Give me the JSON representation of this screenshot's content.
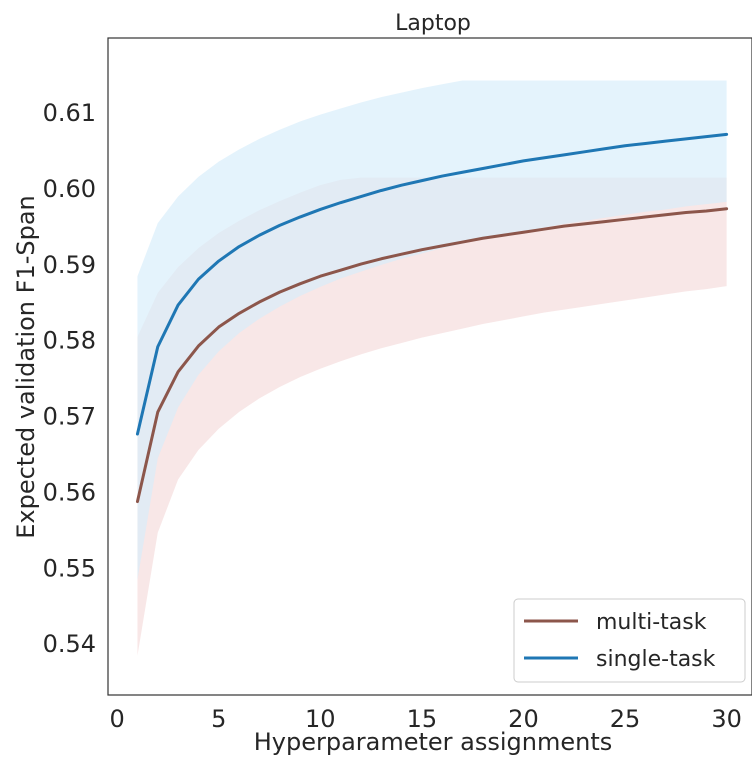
{
  "chart_data": {
    "type": "line",
    "title": "Laptop",
    "xlabel": "Hyperparameter assignments",
    "ylabel": "Expected validation F1-Span",
    "xlim": [
      -0.45,
      31.25
    ],
    "ylim": [
      0.5333,
      0.6199
    ],
    "xticks": [
      0,
      5,
      10,
      15,
      20,
      25,
      30
    ],
    "yticks": [
      0.54,
      0.55,
      0.56,
      0.57,
      0.58,
      0.59,
      0.6,
      0.61
    ],
    "grid": false,
    "legend_position": "lower-right",
    "x": [
      1,
      2,
      3,
      4,
      5,
      6,
      7,
      8,
      9,
      10,
      11,
      12,
      13,
      14,
      15,
      16,
      17,
      18,
      19,
      20,
      21,
      22,
      23,
      24,
      25,
      26,
      27,
      28,
      29,
      30
    ],
    "series": [
      {
        "name": "multi-task",
        "color": "#8c564b",
        "band_color": "#f5dada",
        "values": [
          0.5588,
          0.5706,
          0.5759,
          0.5793,
          0.5818,
          0.5836,
          0.5851,
          0.5864,
          0.5875,
          0.5885,
          0.5893,
          0.5901,
          0.5908,
          0.5914,
          0.592,
          0.5925,
          0.593,
          0.5935,
          0.5939,
          0.5943,
          0.5947,
          0.5951,
          0.5954,
          0.5957,
          0.596,
          0.5963,
          0.5966,
          0.5969,
          0.5971,
          0.5974
        ],
        "upper": [
          0.5805,
          0.5863,
          0.5897,
          0.5922,
          0.5942,
          0.5958,
          0.5972,
          0.5984,
          0.5995,
          0.6005,
          0.6012,
          0.6015,
          0.6015,
          0.6015,
          0.6015,
          0.6015,
          0.6015,
          0.6015,
          0.6015,
          0.6015,
          0.6015,
          0.6015,
          0.6015,
          0.6015,
          0.6015,
          0.6015,
          0.6015,
          0.6015,
          0.6015,
          0.6015
        ],
        "lower": [
          0.5385,
          0.5547,
          0.5617,
          0.5656,
          0.5684,
          0.5706,
          0.5724,
          0.5739,
          0.5752,
          0.5763,
          0.5773,
          0.5782,
          0.579,
          0.5797,
          0.5804,
          0.581,
          0.5816,
          0.5822,
          0.5827,
          0.5832,
          0.5837,
          0.5841,
          0.5845,
          0.5849,
          0.5853,
          0.5857,
          0.5861,
          0.5865,
          0.5868,
          0.5872
        ]
      },
      {
        "name": "single-task",
        "color": "#1f77b4",
        "band_color": "#d6ecfa",
        "values": [
          0.5677,
          0.5792,
          0.5847,
          0.5881,
          0.5905,
          0.5924,
          0.5939,
          0.5952,
          0.5963,
          0.5973,
          0.5982,
          0.599,
          0.5998,
          0.6005,
          0.6011,
          0.6017,
          0.6022,
          0.6027,
          0.6032,
          0.6037,
          0.6041,
          0.6045,
          0.6049,
          0.6053,
          0.6057,
          0.606,
          0.6063,
          0.6066,
          0.6069,
          0.6072
        ],
        "upper": [
          0.5885,
          0.5955,
          0.599,
          0.6016,
          0.6036,
          0.6052,
          0.6066,
          0.6078,
          0.6089,
          0.6098,
          0.6106,
          0.6114,
          0.6121,
          0.6127,
          0.6133,
          0.6138,
          0.6143,
          0.6143,
          0.6143,
          0.6143,
          0.6143,
          0.6143,
          0.6143,
          0.6143,
          0.6143,
          0.6143,
          0.6143,
          0.6143,
          0.6143,
          0.6143
        ],
        "lower": [
          0.5485,
          0.5645,
          0.5712,
          0.5755,
          0.5786,
          0.581,
          0.5829,
          0.5845,
          0.5859,
          0.5871,
          0.5882,
          0.5891,
          0.59,
          0.5908,
          0.5915,
          0.5922,
          0.5928,
          0.5934,
          0.5939,
          0.5944,
          0.5949,
          0.5954,
          0.5958,
          0.5962,
          0.5966,
          0.597,
          0.5973,
          0.5977,
          0.598,
          0.5983
        ]
      }
    ]
  }
}
